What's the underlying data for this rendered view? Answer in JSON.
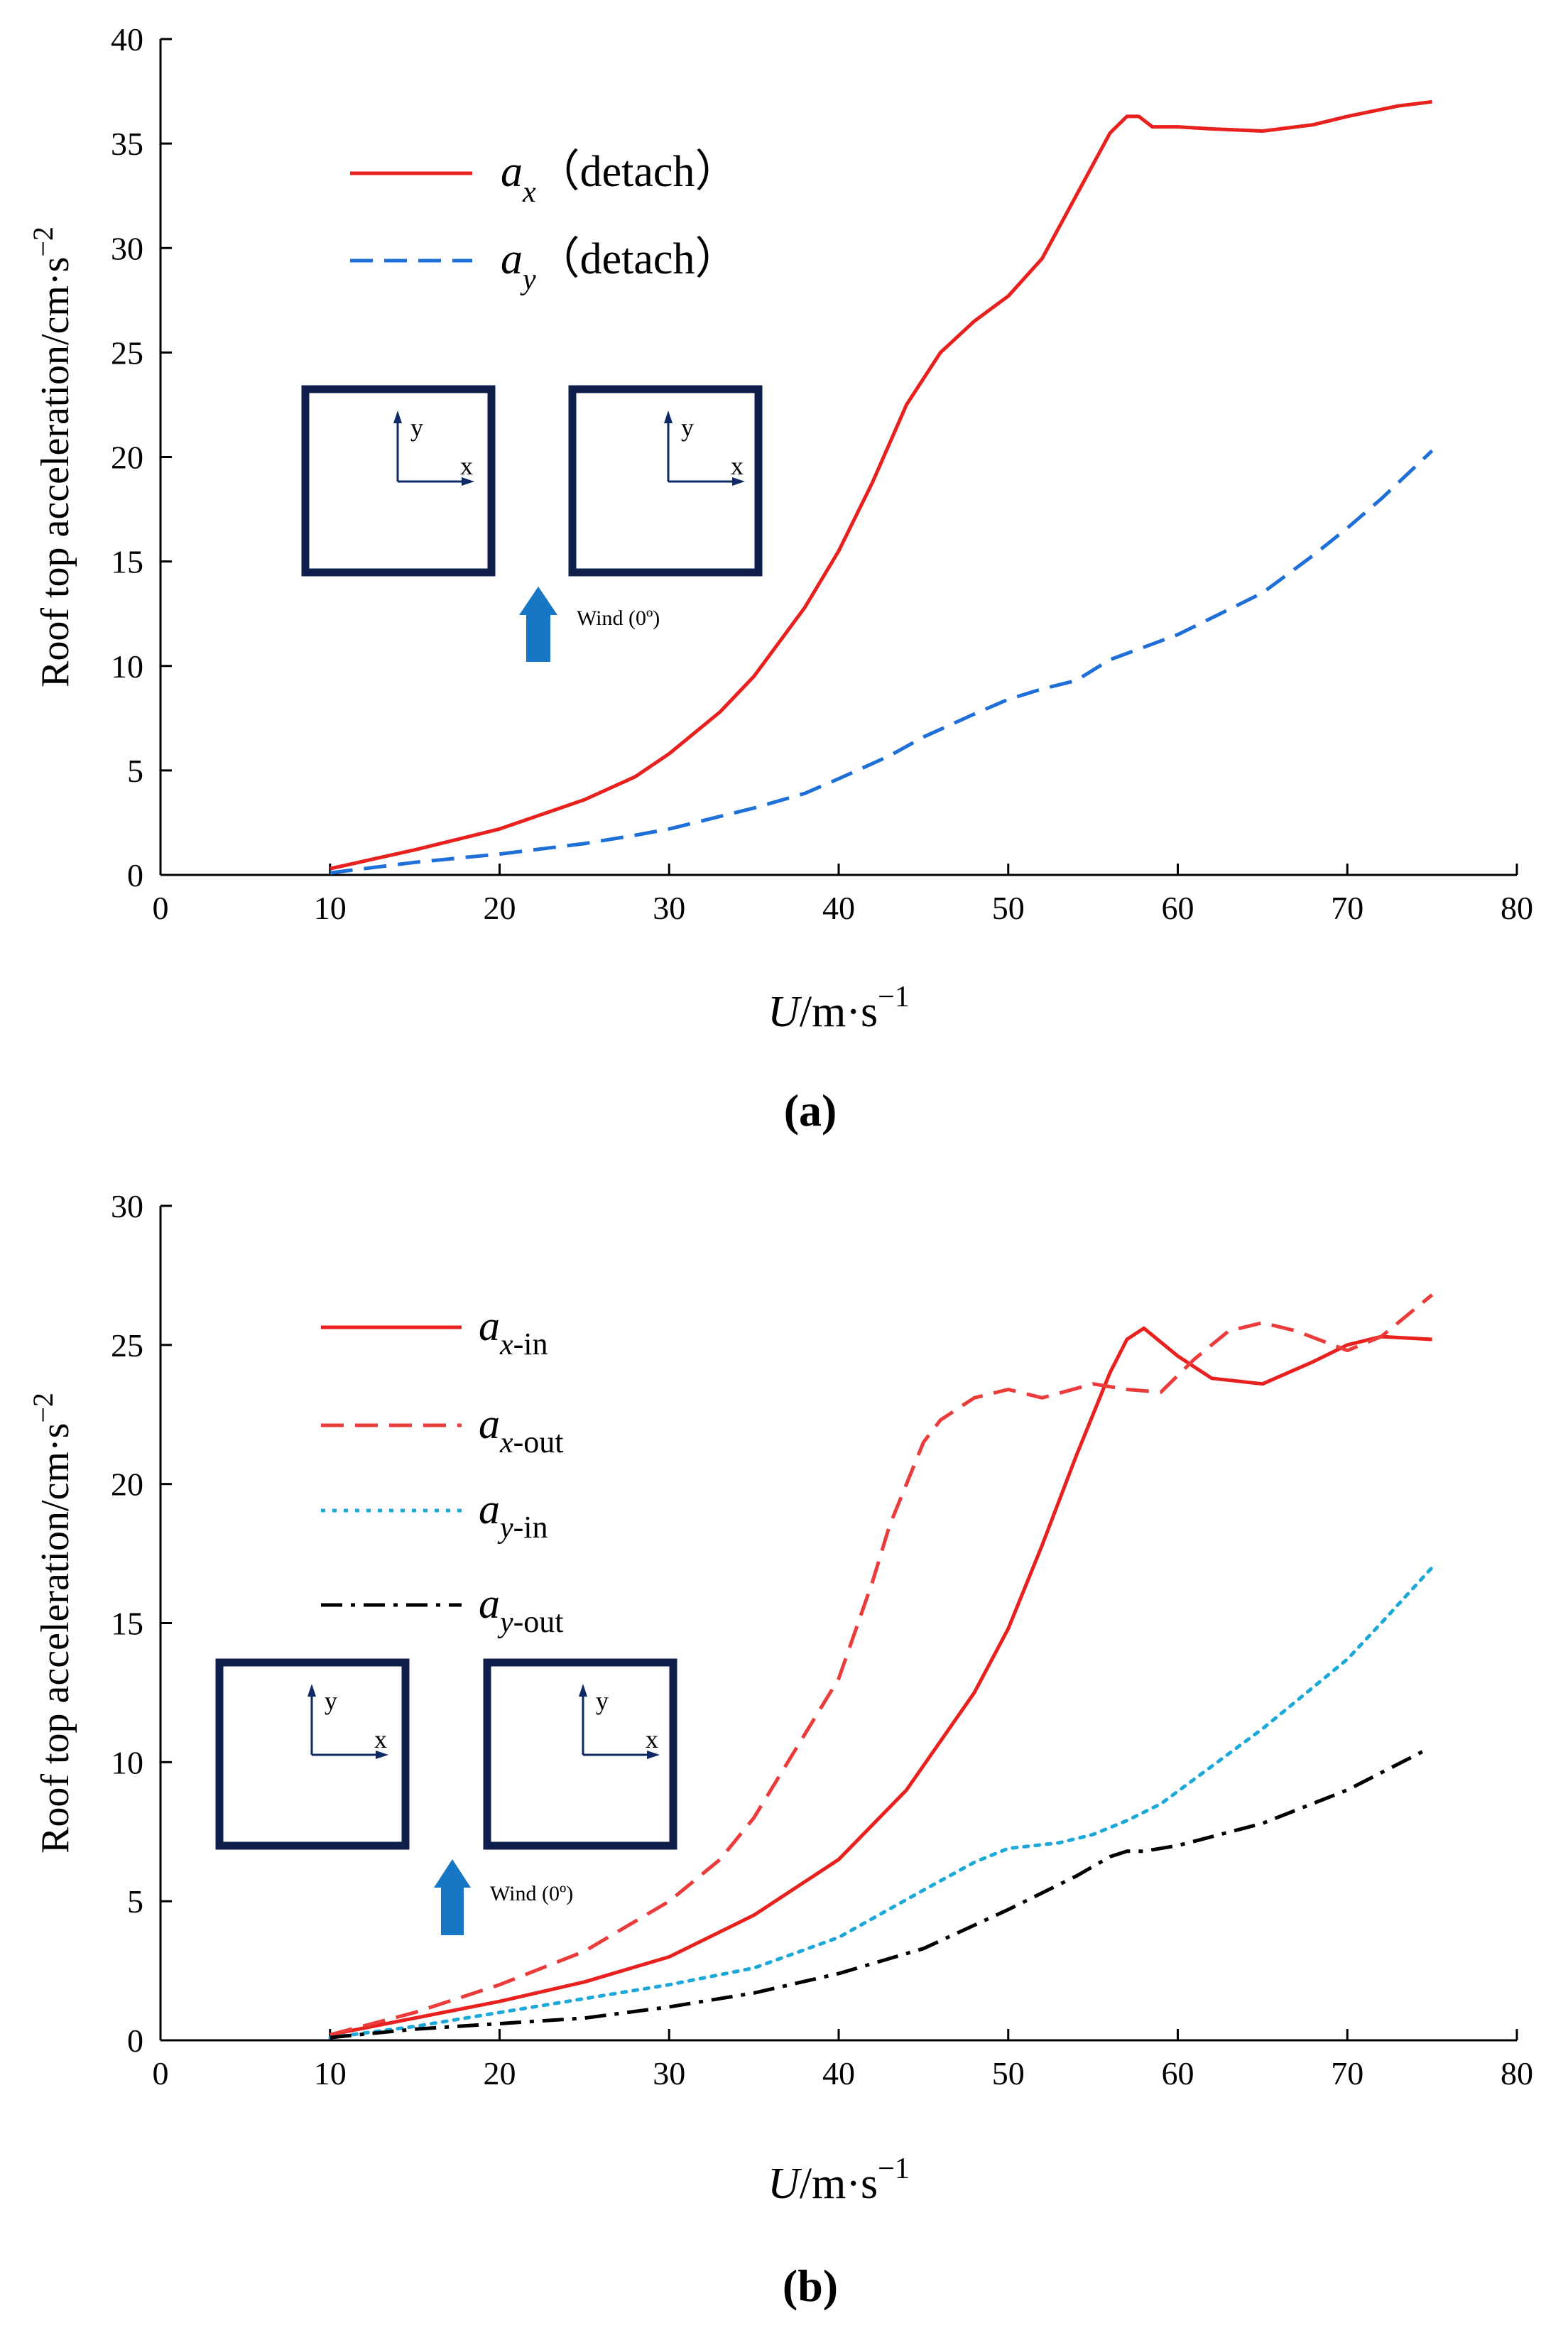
{
  "chart_data": [
    {
      "panel": "a",
      "type": "line",
      "caption": "(a)",
      "xlabel_var": "U",
      "xlabel_unit": "/m·s",
      "xlabel_exp": "−1",
      "ylabel": "Roof top acceleration/cm·s",
      "ylabel_exp": "−2",
      "xlim": [
        0,
        80
      ],
      "ylim": [
        0,
        40
      ],
      "xticks": [
        0,
        10,
        20,
        30,
        40,
        50,
        60,
        70,
        80
      ],
      "yticks": [
        0,
        5,
        10,
        15,
        20,
        25,
        30,
        35,
        40
      ],
      "series": [
        {
          "name": "a_x (detach)",
          "symbol": "a",
          "sub": "x",
          "suffix": "（detach）",
          "color": "#e8201e",
          "dash": "solid",
          "x": [
            10,
            15,
            20,
            25,
            28,
            30,
            33,
            35,
            38,
            40,
            42,
            44,
            46,
            48,
            50,
            52,
            54,
            56,
            57,
            57.7,
            58.5,
            60,
            62,
            65,
            68,
            70,
            73,
            75
          ],
          "y": [
            0.3,
            1.2,
            2.2,
            3.6,
            4.7,
            5.8,
            7.8,
            9.5,
            12.8,
            15.5,
            18.8,
            22.5,
            25,
            26.5,
            27.7,
            29.5,
            32.5,
            35.5,
            36.3,
            36.3,
            35.8,
            35.8,
            35.7,
            35.6,
            35.9,
            36.3,
            36.8,
            37.0
          ]
        },
        {
          "name": "a_y (detach)",
          "symbol": "a",
          "sub": "y",
          "suffix": "（detach）",
          "color": "#1f6fd8",
          "dash": "dashed",
          "x": [
            10,
            15,
            20,
            25,
            28,
            30,
            35,
            38,
            40,
            43,
            45,
            48,
            50,
            52,
            54,
            56,
            58,
            60,
            62,
            65,
            68,
            70,
            72,
            75
          ],
          "y": [
            0.1,
            0.6,
            1.0,
            1.5,
            1.9,
            2.2,
            3.2,
            3.9,
            4.6,
            5.7,
            6.6,
            7.7,
            8.4,
            8.9,
            9.3,
            10.3,
            10.9,
            11.5,
            12.3,
            13.5,
            15.3,
            16.6,
            18.0,
            20.3
          ]
        }
      ],
      "inset": {
        "axis_x": "x",
        "axis_y": "y",
        "wind_label": "Wind (0º)"
      }
    },
    {
      "panel": "b",
      "type": "line",
      "caption": "(b)",
      "xlabel_var": "U",
      "xlabel_unit": "/m·s",
      "xlabel_exp": "−1",
      "ylabel": "Roof top acceleration/cm·s",
      "ylabel_exp": "−2",
      "xlim": [
        0,
        80
      ],
      "ylim": [
        0,
        30
      ],
      "xticks": [
        0,
        10,
        20,
        30,
        40,
        50,
        60,
        70,
        80
      ],
      "yticks": [
        0,
        5,
        10,
        15,
        20,
        25,
        30
      ],
      "series": [
        {
          "name": "a_x-in",
          "symbol": "a",
          "sub": "x",
          "suffix": "-in",
          "color": "#e8201e",
          "dash": "solid",
          "x": [
            10,
            15,
            20,
            25,
            30,
            35,
            40,
            44,
            48,
            50,
            52,
            54,
            56,
            57,
            58,
            60,
            62,
            65,
            68,
            70,
            72,
            75
          ],
          "y": [
            0.2,
            0.8,
            1.4,
            2.1,
            3.0,
            4.5,
            6.5,
            9.0,
            12.5,
            14.8,
            17.8,
            21.0,
            24.0,
            25.2,
            25.6,
            24.6,
            23.8,
            23.6,
            24.4,
            25.0,
            25.3,
            25.2
          ]
        },
        {
          "name": "a_x-out",
          "symbol": "a",
          "sub": "x",
          "suffix": "-out",
          "color": "#ec3b3b",
          "dash": "dashed",
          "x": [
            10,
            15,
            20,
            25,
            30,
            33,
            35,
            37,
            40,
            42,
            43,
            44,
            45,
            46,
            48,
            50,
            52,
            55,
            57,
            59,
            61,
            63,
            65,
            67,
            70,
            72,
            75
          ],
          "y": [
            0.2,
            1.0,
            2.0,
            3.2,
            5.0,
            6.5,
            8.0,
            10.0,
            13.0,
            16.5,
            18.5,
            20.0,
            21.5,
            22.3,
            23.1,
            23.4,
            23.1,
            23.6,
            23.4,
            23.3,
            24.5,
            25.5,
            25.8,
            25.5,
            24.8,
            25.3,
            26.8
          ]
        },
        {
          "name": "a_y-in",
          "symbol": "a",
          "sub": "y",
          "suffix": "-in",
          "color": "#1ca8d8",
          "dash": "dotted",
          "x": [
            10,
            15,
            20,
            25,
            30,
            35,
            40,
            45,
            48,
            50,
            53,
            55,
            57,
            59,
            61,
            63,
            65,
            68,
            70,
            72,
            75
          ],
          "y": [
            0.1,
            0.5,
            1.0,
            1.5,
            2.0,
            2.6,
            3.7,
            5.4,
            6.4,
            6.9,
            7.1,
            7.4,
            7.9,
            8.5,
            9.4,
            10.3,
            11.2,
            12.7,
            13.7,
            15.0,
            17.0
          ]
        },
        {
          "name": "a_y-out",
          "symbol": "a",
          "sub": "y",
          "suffix": "-out",
          "color": "#000000",
          "dash": "dashdot",
          "x": [
            10,
            15,
            20,
            25,
            30,
            35,
            40,
            45,
            50,
            54,
            56,
            57,
            58,
            60,
            65,
            70,
            74.5
          ],
          "y": [
            0.1,
            0.4,
            0.6,
            0.8,
            1.2,
            1.7,
            2.4,
            3.3,
            4.7,
            5.9,
            6.6,
            6.8,
            6.8,
            7.0,
            7.8,
            9.0,
            10.4
          ]
        }
      ],
      "inset": {
        "axis_x": "x",
        "axis_y": "y",
        "wind_label": "Wind (0º)"
      }
    }
  ]
}
